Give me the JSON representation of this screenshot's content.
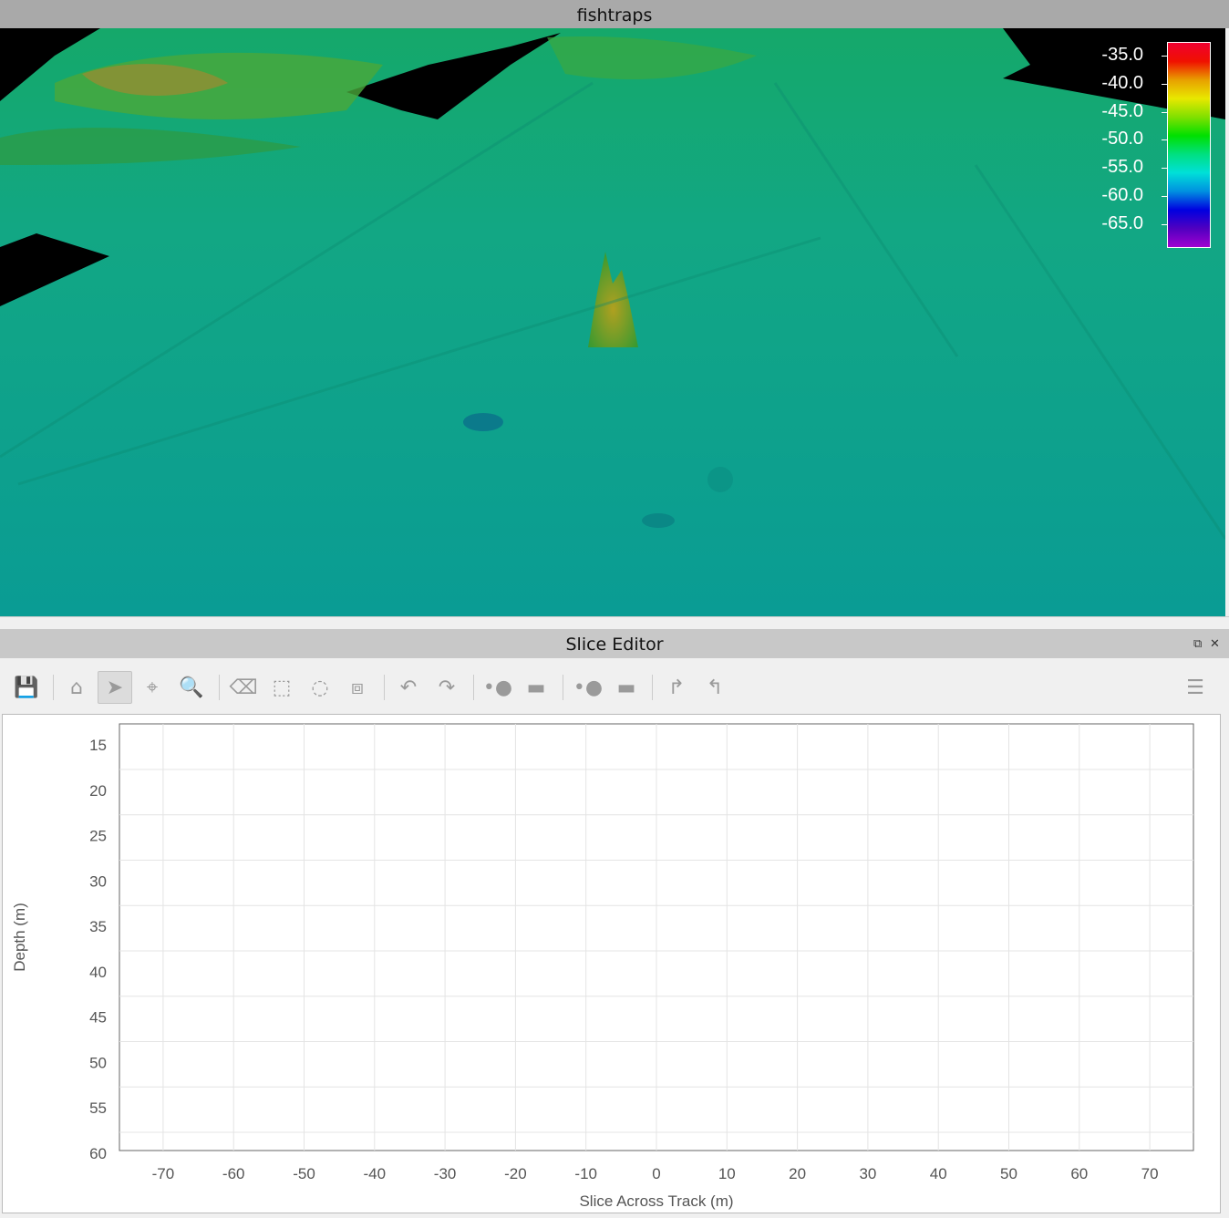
{
  "window": {
    "title": "fishtraps"
  },
  "colorbar": {
    "labels": [
      "-35.0",
      "-40.0",
      "-45.0",
      "-50.0",
      "-55.0",
      "-60.0",
      "-65.0"
    ],
    "colors": [
      "#f00030",
      "#f01000",
      "#e8a000",
      "#e8e800",
      "#80e000",
      "#00e000",
      "#00e080",
      "#00e0d8",
      "#0090e0",
      "#0000e0",
      "#5000c0",
      "#a000d0"
    ]
  },
  "panel": {
    "title": "Slice Editor",
    "float_icon": "float-icon",
    "close_icon": "close-icon"
  },
  "toolbar": {
    "items": [
      {
        "name": "save-icon",
        "glyph": "💾"
      },
      {
        "name": "home-icon",
        "glyph": "⌂"
      },
      {
        "name": "pointer-icon",
        "glyph": "➤",
        "active": true
      },
      {
        "name": "crosshair-pick-icon",
        "glyph": "⌖"
      },
      {
        "name": "zoom-icon",
        "glyph": "🔍"
      },
      {
        "name": "eraser-icon",
        "glyph": "⌫"
      },
      {
        "name": "rect-select-icon",
        "glyph": "⬚"
      },
      {
        "name": "lasso-select-icon",
        "glyph": "◌"
      },
      {
        "name": "polygon-select-icon",
        "glyph": "⧈"
      },
      {
        "name": "undo-icon",
        "glyph": "↶"
      },
      {
        "name": "redo-icon",
        "glyph": "↷"
      },
      {
        "name": "point-size-icon",
        "glyph": "•●"
      },
      {
        "name": "color-map-icon",
        "glyph": "▬"
      },
      {
        "name": "point-size-2-icon",
        "glyph": "•●"
      },
      {
        "name": "color-map-2-icon",
        "glyph": "▬"
      },
      {
        "name": "forward-icon",
        "glyph": "↱"
      },
      {
        "name": "back-icon",
        "glyph": "↰"
      },
      {
        "name": "options-menu-icon",
        "glyph": "☰"
      }
    ]
  },
  "chart_data": {
    "type": "scatter",
    "xlabel": "Slice Across Track (m)",
    "ylabel": "Depth (m)",
    "xticks": [
      -70,
      -60,
      -50,
      -40,
      -30,
      -20,
      -10,
      0,
      10,
      20,
      30,
      40,
      50,
      60,
      70
    ],
    "yticks": [
      15,
      20,
      25,
      30,
      35,
      40,
      45,
      50,
      55,
      60
    ],
    "y_inverted": true,
    "grid": true,
    "points": []
  }
}
